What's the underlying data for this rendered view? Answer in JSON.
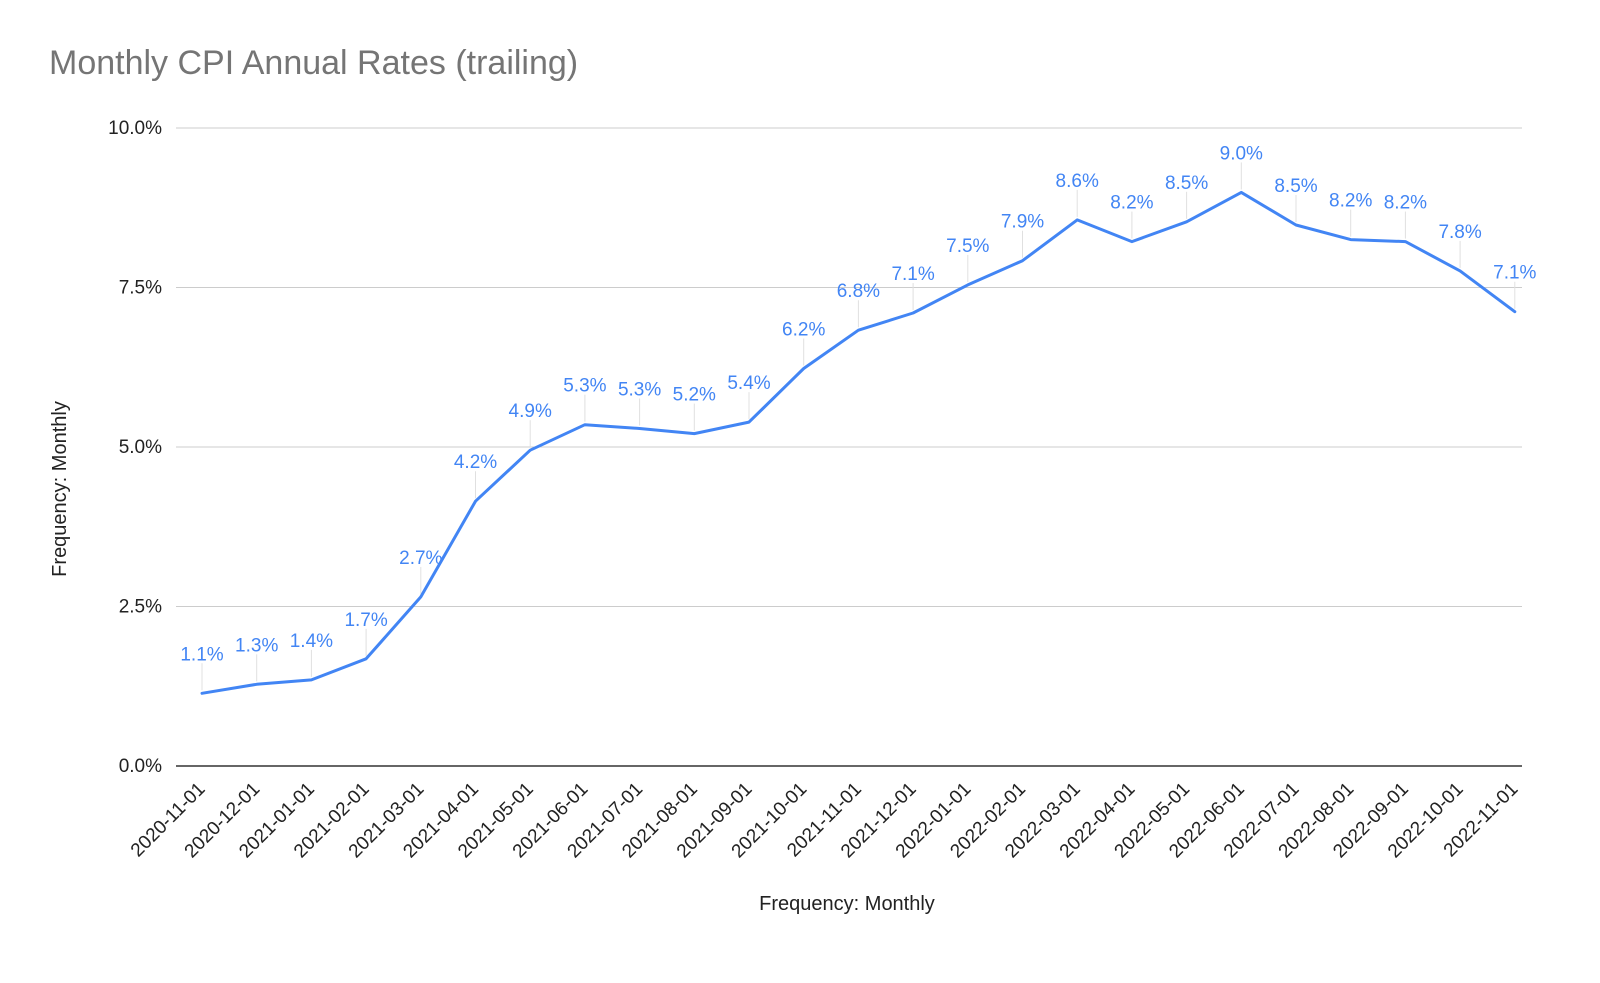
{
  "chart_data": {
    "type": "line",
    "title": "Monthly CPI Annual Rates (trailing)",
    "xlabel": "Frequency: Monthly",
    "ylabel": "Frequency: Monthly",
    "ylim": [
      0,
      10
    ],
    "y_ticks": [
      "0.0%",
      "2.5%",
      "5.0%",
      "7.5%",
      "10.0%"
    ],
    "y_tick_values": [
      0,
      2.5,
      5,
      7.5,
      10
    ],
    "grid": true,
    "legend": "none",
    "line_color": "#4285f4",
    "categories": [
      "2020-11-01",
      "2020-12-01",
      "2021-01-01",
      "2021-02-01",
      "2021-03-01",
      "2021-04-01",
      "2021-05-01",
      "2021-06-01",
      "2021-07-01",
      "2021-08-01",
      "2021-09-01",
      "2021-10-01",
      "2021-11-01",
      "2021-12-01",
      "2022-01-01",
      "2022-02-01",
      "2022-03-01",
      "2022-04-01",
      "2022-05-01",
      "2022-06-01",
      "2022-07-01",
      "2022-08-01",
      "2022-09-01",
      "2022-10-01",
      "2022-11-01"
    ],
    "values": [
      1.14,
      1.28,
      1.35,
      1.68,
      2.65,
      4.15,
      4.95,
      5.35,
      5.29,
      5.21,
      5.39,
      6.23,
      6.83,
      7.1,
      7.54,
      7.92,
      8.56,
      8.22,
      8.53,
      8.99,
      8.48,
      8.25,
      8.22,
      7.76,
      7.12
    ],
    "labels": [
      "1.1%",
      "1.3%",
      "1.4%",
      "1.7%",
      "2.7%",
      "4.2%",
      "4.9%",
      "5.3%",
      "5.3%",
      "5.2%",
      "5.4%",
      "6.2%",
      "6.8%",
      "7.1%",
      "7.5%",
      "7.9%",
      "8.6%",
      "8.2%",
      "8.5%",
      "9.0%",
      "8.5%",
      "8.2%",
      "8.2%",
      "7.8%",
      "7.1%"
    ]
  }
}
